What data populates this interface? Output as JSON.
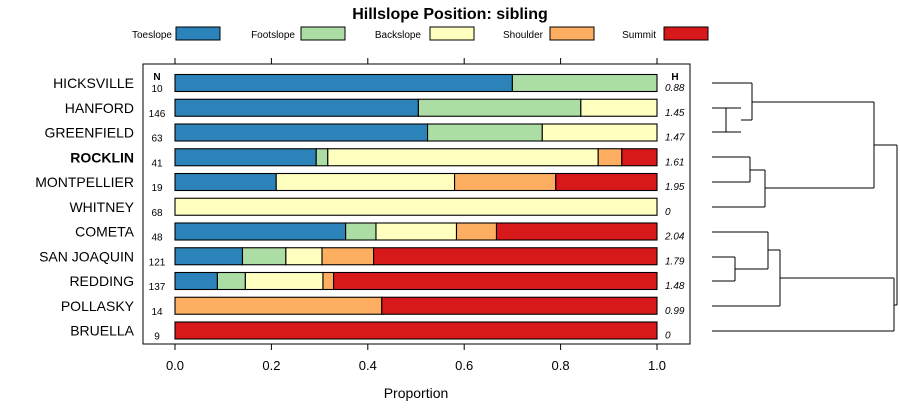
{
  "chart_data": {
    "type": "bar",
    "stacked": true,
    "orientation": "horizontal",
    "title": "Hillslope Position: sibling",
    "xlabel": "Proportion",
    "ylabel": "",
    "xlim": [
      0,
      1
    ],
    "x_ticks": [
      "0.0",
      "0.2",
      "0.4",
      "0.6",
      "0.8",
      "1.0"
    ],
    "n_header": "N",
    "h_header": "H",
    "highlight": "ROCKLIN",
    "legend": [
      {
        "name": "Toeslope",
        "color": "#2b83ba"
      },
      {
        "name": "Footslope",
        "color": "#abdda4"
      },
      {
        "name": "Backslope",
        "color": "#ffffbf"
      },
      {
        "name": "Shoulder",
        "color": "#fdae61"
      },
      {
        "name": "Summit",
        "color": "#d7191c"
      }
    ],
    "rows": [
      {
        "name": "HICKSVILLE",
        "n": "10",
        "h": "0.88",
        "values": [
          0.7,
          0.3,
          0,
          0,
          0
        ]
      },
      {
        "name": "HANFORD",
        "n": "146",
        "h": "1.45",
        "values": [
          0.505,
          0.337,
          0.158,
          0,
          0
        ]
      },
      {
        "name": "GREENFIELD",
        "n": "63",
        "h": "1.47",
        "values": [
          0.524,
          0.238,
          0.238,
          0,
          0
        ]
      },
      {
        "name": "ROCKLIN",
        "n": "41",
        "h": "1.61",
        "values": [
          0.293,
          0.024,
          0.561,
          0.049,
          0.073
        ]
      },
      {
        "name": "MONTPELLIER",
        "n": "19",
        "h": "1.95",
        "values": [
          0.21,
          0,
          0.37,
          0.21,
          0.21
        ]
      },
      {
        "name": "WHITNEY",
        "n": "68",
        "h": "0",
        "values": [
          0,
          0,
          1,
          0,
          0
        ]
      },
      {
        "name": "COMETA",
        "n": "48",
        "h": "2.04",
        "values": [
          0.354,
          0.063,
          0.167,
          0.083,
          0.333
        ]
      },
      {
        "name": "SAN JOAQUIN",
        "n": "121",
        "h": "1.79",
        "values": [
          0.14,
          0.09,
          0.075,
          0.107,
          0.588
        ]
      },
      {
        "name": "REDDING",
        "n": "137",
        "h": "1.48",
        "values": [
          0.088,
          0.058,
          0.161,
          0.022,
          0.671
        ]
      },
      {
        "name": "POLLASKY",
        "n": "14",
        "h": "0.99",
        "values": [
          0,
          0,
          0,
          0.429,
          0.571
        ]
      },
      {
        "name": "BRUELLA",
        "n": "9",
        "h": "0",
        "values": [
          0,
          0,
          0,
          0,
          1
        ]
      }
    ],
    "dendrogram": {
      "description": "hierarchical clustering of soil series by hillslope position proportions",
      "merge_order": [
        [
          "HANFORD",
          "GREENFIELD"
        ],
        [
          "HICKSVILLE",
          "HANFORD+GREENFIELD"
        ],
        [
          "ROCKLIN",
          "MONTPELLIER"
        ],
        [
          "ROCKLIN+MONTPELLIER",
          "WHITNEY"
        ],
        [
          "HICKSVILLE+HANFORD+GREENFIELD",
          "ROCKLIN+MONTPELLIER+WHITNEY"
        ],
        [
          "SAN JOAQUIN",
          "REDDING"
        ],
        [
          "COMETA",
          "SAN JOAQUIN+REDDING"
        ],
        [
          "COMETA+SAN JOAQUIN+REDDING",
          "POLLASKY"
        ],
        [
          "COMETA+SAN JOAQUIN+REDDING+POLLASKY",
          "BRUELLA"
        ],
        [
          "upper",
          "lower"
        ]
      ]
    }
  }
}
